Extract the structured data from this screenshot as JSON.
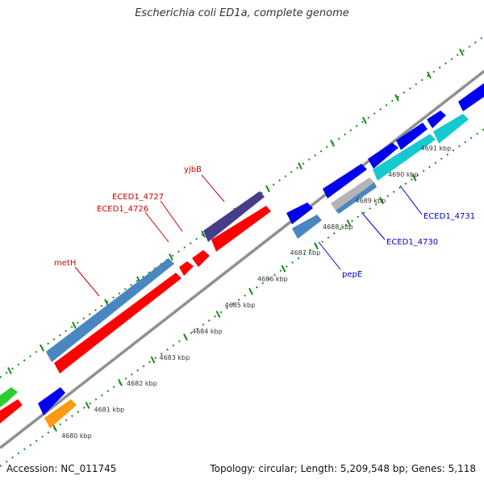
{
  "title": "Escherichia coli ED1a, complete genome",
  "footer": {
    "accession": "Accession: NC_011745",
    "summary": "Topology: circular; Length: 5,209,548 bp; Genes: 5,118"
  },
  "colors": {
    "backbone": "#8c8c8c",
    "tick": "#1a8a1a",
    "forward_label": "#cc0000",
    "reverse_label": "#0000cc",
    "red": "#ff0000",
    "steelblue": "#4a86c0",
    "purple": "#483d8b",
    "blue": "#0000ee",
    "cyan": "#16c9d0",
    "green": "#2ecc2e",
    "orange": "#ff9a10",
    "grey": "#b4b4b4"
  },
  "ticks": [
    {
      "label": "4680 kbp"
    },
    {
      "label": "4681 kbp"
    },
    {
      "label": "4682 kbp"
    },
    {
      "label": "4683 kbp"
    },
    {
      "label": "4684 kbp"
    },
    {
      "label": "4685 kbp"
    },
    {
      "label": "4686 kbp"
    },
    {
      "label": "4687 kbp"
    },
    {
      "label": "4688 kbp"
    },
    {
      "label": "4689 kbp"
    },
    {
      "label": "4690 kbp"
    },
    {
      "label": "4691 kbp"
    }
  ],
  "gene_labels": {
    "yjbB": "yjbB",
    "eced1_4727": "ECED1_4727",
    "eced1_4726": "ECED1_4726",
    "metH": "metH",
    "pepE": "pepE",
    "eced1_4730": "ECED1_4730",
    "eced1_4731": "ECED1_4731"
  }
}
